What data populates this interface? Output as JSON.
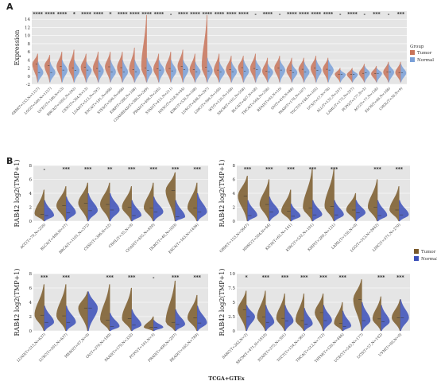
{
  "figure": {
    "footer": "TCGA+GTEx",
    "colors": {
      "tumor": "#c8745a",
      "normal": "#7aa0d8",
      "tumorDark": "#7a5a2a",
      "normalDark": "#3b4fb8",
      "panelBg": "#e5e5e5"
    }
  },
  "chart_data": [
    {
      "id": "A",
      "type": "violin",
      "panel_label": "A",
      "ylabel": "Expression",
      "ylim": [
        -2,
        16
      ],
      "yticks": [
        -2,
        0,
        2,
        4,
        6,
        8,
        10,
        12,
        14
      ],
      "legend": {
        "title": "Group",
        "entries": [
          "Tumor",
          "Normal"
        ],
        "placement": "right"
      },
      "categories": [
        "GBM(T=153,N=1157)",
        "LGG(T=509,N=1157)",
        "UCEC(T=180,N=23)",
        "BRCA(T=1092,N=292)",
        "CESC(T=304,N=13)",
        "LUAD(T=513,N=397)",
        "ESCA(T=181,N=668)",
        "STES(T=596,N=668)",
        "KIRP(T=288,N=168)",
        "COADREAD(T=380,N=349)",
        "PRAD(T=496,N=245)",
        "STAD(T=415,N=211)",
        "HNSC(T=518,N=44)",
        "KIRC(T=530,N=168)",
        "LUSC(T=498,N=397)",
        "LIHC(T=369,N=160)",
        "WT(T=120,N=168)",
        "SKCM(T=102,N=558)",
        "BLCA(T=407,N=28)",
        "THCA(T=504,N=338)",
        "READ(T=92,N=10)",
        "OV(T=419,N=88)",
        "PAAD(T=178,N=167)",
        "TGCT(T=148,N=165)",
        "UCS(T=57,N=78)",
        "ALL(T=132,N=337)",
        "LAML(T=173,N=337)",
        "PCPG(T=177,N=3)",
        "ACC(T=77,N=128)",
        "KICH(T=66,N=168)",
        "CHOL(T=36,N=9)"
      ],
      "significance": [
        "****",
        "****",
        "****",
        "*",
        "****",
        "****",
        "*",
        "****",
        "****",
        "****",
        "****",
        "-",
        "****",
        "****",
        "****",
        "****",
        "****",
        "****",
        "-",
        "****",
        "-",
        "****",
        "****",
        "****",
        "****",
        "-",
        "****",
        "-",
        "***",
        "-",
        "***"
      ],
      "series": [
        {
          "name": "Tumor",
          "median": [
            3.0,
            2.6,
            2.4,
            2.0,
            2.2,
            1.9,
            2.3,
            2.1,
            1.6,
            2.0,
            1.8,
            1.9,
            2.4,
            1.6,
            2.2,
            1.5,
            1.6,
            2.1,
            1.9,
            1.2,
            2.0,
            1.4,
            1.7,
            2.0,
            1.7,
            0.5,
            0.4,
            0.7,
            0.6,
            1.0,
            0.9
          ],
          "max": [
            5.5,
            5.2,
            6.0,
            6.5,
            5.5,
            6.0,
            6.0,
            6.0,
            7.0,
            15.0,
            5.5,
            6.0,
            6.5,
            5.5,
            15.0,
            5.5,
            5.0,
            5.0,
            5.5,
            4.5,
            5.0,
            4.5,
            4.5,
            5.0,
            4.5,
            2.0,
            2.0,
            3.0,
            2.5,
            3.5,
            3.5
          ]
        },
        {
          "name": "Normal",
          "median": [
            0.9,
            0.9,
            1.5,
            1.4,
            1.5,
            1.3,
            1.0,
            1.0,
            1.1,
            1.4,
            1.5,
            1.3,
            1.6,
            1.1,
            1.3,
            1.0,
            1.1,
            1.2,
            1.6,
            1.0,
            1.5,
            0.9,
            1.0,
            1.4,
            1.5,
            0.4,
            0.4,
            0.8,
            0.7,
            1.0,
            0.8
          ],
          "max": [
            3.5,
            3.5,
            4.0,
            4.0,
            3.5,
            4.0,
            4.0,
            4.0,
            4.0,
            4.5,
            4.0,
            4.0,
            4.0,
            3.5,
            4.5,
            3.5,
            3.5,
            4.0,
            4.0,
            3.0,
            4.0,
            3.0,
            3.5,
            4.0,
            4.0,
            1.5,
            1.5,
            2.5,
            2.0,
            3.0,
            3.0
          ]
        }
      ]
    },
    {
      "id": "B1",
      "type": "violin",
      "panel_label": "B",
      "ylabel": "RAB42 log2(TMP+1)",
      "ylim": [
        0,
        8
      ],
      "yticks": [
        0,
        2,
        4,
        6,
        8
      ],
      "categories": [
        "ACC(T=79,N=258)",
        "BLCA(T=406,N=37)",
        "BRCA(T=1101,N=572)",
        "CESC(T=306,N=22)",
        "CHOL(T=35,N=9)",
        "COAD(T=455,N=820)",
        "DLBC(T=48,N=929)",
        "ESCA(T=163,N=1436)"
      ],
      "significance": [
        "-",
        "***",
        "***",
        "**",
        "***",
        "***",
        "***",
        "***"
      ],
      "series": [
        {
          "name": "Tumor",
          "median": [
            1.0,
            2.2,
            2.6,
            2.4,
            2.0,
            1.9,
            4.4,
            1.9
          ],
          "max": [
            4.5,
            5.0,
            5.5,
            5.5,
            5.0,
            5.5,
            7.0,
            5.5
          ]
        },
        {
          "name": "Normal",
          "median": [
            0.8,
            1.2,
            1.5,
            1.6,
            0.8,
            1.3,
            0.6,
            1.3
          ],
          "max": [
            3.0,
            3.5,
            4.0,
            4.0,
            3.0,
            3.5,
            3.0,
            4.0
          ]
        }
      ]
    },
    {
      "id": "B2",
      "type": "violin",
      "ylabel": "RAB42 log2(TMP+1)",
      "ylim": [
        0,
        8
      ],
      "yticks": [
        0,
        2,
        4,
        6,
        8
      ],
      "legend": {
        "entries": [
          "Tumor",
          "Normal"
        ],
        "placement": "right"
      },
      "categories": [
        "GBM(T=153,N=2647)",
        "HNSC(T=504,N=44)",
        "KICH(T=65,N=141)",
        "KIRC(T=532,N=101)",
        "KIRP(T=280,N=121)",
        "LAML(T=150,N=0)",
        "LGG(T=513,N=2642)",
        "LIHC(T=371,N=270)"
      ],
      "significance": [
        "***",
        "***",
        "***",
        "***",
        "***",
        "",
        "***",
        "***"
      ],
      "series": [
        {
          "name": "Tumor",
          "median": [
            3.6,
            2.4,
            1.4,
            1.9,
            2.1,
            1.6,
            2.0,
            1.6
          ],
          "max": [
            6.5,
            6.0,
            4.5,
            7.5,
            7.5,
            4.0,
            6.0,
            5.0
          ]
        },
        {
          "name": "Normal",
          "median": [
            0.8,
            1.3,
            0.7,
            0.9,
            0.9,
            1.2,
            0.8,
            0.9
          ],
          "max": [
            3.0,
            3.5,
            2.5,
            3.0,
            3.0,
            3.0,
            3.0,
            3.0
          ]
        }
      ]
    },
    {
      "id": "B3",
      "type": "violin",
      "ylabel": "RAB42 log2(TMP+1)",
      "ylim": [
        0,
        8
      ],
      "yticks": [
        0,
        2,
        4,
        6,
        8
      ],
      "categories": [
        "LUAD(T=515,N=637)",
        "LUSC(T=501,N=637)",
        "MESO(T=87,N=0)",
        "OV(T=379,N=180)",
        "PAAD(T=179,N=332)",
        "PCPG(T=181,N=3)",
        "PRAD(T=499,N=297)",
        "READ(T=165,N=789)"
      ],
      "significance": [
        "***",
        "***",
        "",
        "***",
        "***",
        "-",
        "***",
        "***"
      ],
      "series": [
        {
          "name": "Tumor",
          "median": [
            2.2,
            2.1,
            3.2,
            1.5,
            1.7,
            0.5,
            1.2,
            1.8
          ],
          "max": [
            6.5,
            6.5,
            5.5,
            6.5,
            6.0,
            2.0,
            7.0,
            5.0
          ]
        },
        {
          "name": "Normal",
          "median": [
            1.2,
            1.2,
            3.2,
            0.6,
            0.8,
            0.5,
            0.9,
            1.1
          ],
          "max": [
            3.5,
            3.5,
            5.5,
            2.5,
            3.0,
            1.5,
            3.0,
            3.5
          ]
        }
      ]
    },
    {
      "id": "B4",
      "type": "violin",
      "ylabel": "RAB42 log2(TMP+1)",
      "ylim": [
        0,
        10
      ],
      "yticks": [
        0,
        2.5,
        5.0,
        7.5,
        10.0
      ],
      "categories": [
        "SARC(T=262,N=2)",
        "SKCM(T=471,N=1810)",
        "STAD(T=375,N=391)",
        "TGCT(T=154,N=361)",
        "THCA(T=512,N=712)",
        "THYM(T=120,N=446)",
        "UCEC(T=545,N=177)",
        "UCS(T=57,N=142)",
        "UVM(T=80,N=0)"
      ],
      "significance": [
        "*",
        "***",
        "***",
        "***",
        "***",
        "***",
        "",
        "***",
        "***"
      ],
      "series": [
        {
          "name": "Tumor",
          "median": [
            3.7,
            2.4,
            2.2,
            1.8,
            3.2,
            1.3,
            5.5,
            2.1,
            2.3
          ],
          "max": [
            7.0,
            7.0,
            6.5,
            6.5,
            6.5,
            5.0,
            9.0,
            6.0,
            5.5
          ]
        },
        {
          "name": "Normal",
          "median": [
            2.5,
            1.5,
            1.7,
            1.2,
            1.8,
            0.8,
            1.8,
            1.6,
            2.3
          ],
          "max": [
            4.5,
            4.5,
            4.5,
            4.0,
            4.5,
            3.5,
            5.0,
            4.5,
            5.5
          ]
        }
      ]
    }
  ]
}
